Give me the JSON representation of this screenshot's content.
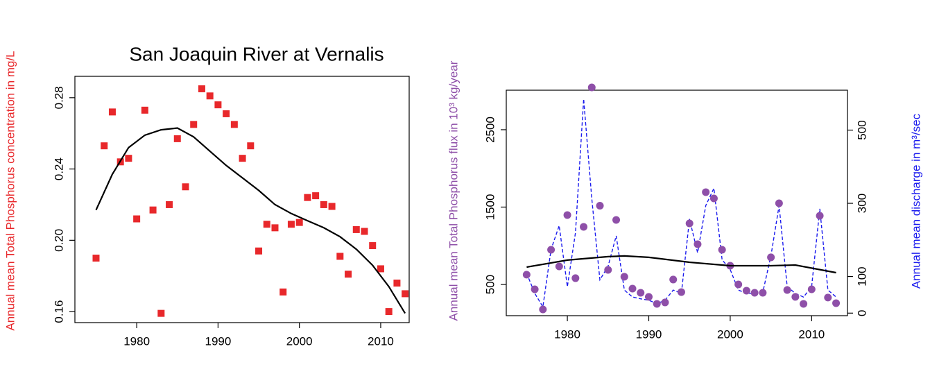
{
  "chart_data": [
    {
      "type": "scatter",
      "title": "San Joaquin River at Vernalis",
      "y_label": "Annual mean Total Phosphorus concentration in mg/L",
      "y_label_color": "#e8282b",
      "x": [
        1975,
        1976,
        1977,
        1978,
        1979,
        1980,
        1981,
        1982,
        1983,
        1984,
        1985,
        1986,
        1987,
        1988,
        1989,
        1990,
        1991,
        1992,
        1993,
        1994,
        1995,
        1996,
        1997,
        1998,
        1999,
        2000,
        2001,
        2002,
        2003,
        2004,
        2005,
        2006,
        2007,
        2008,
        2009,
        2010,
        2011,
        2012,
        2013
      ],
      "xlim": [
        1972.4,
        2013.5
      ],
      "xticks": [
        1980,
        1990,
        2000,
        2010
      ],
      "ylim": [
        0.1538,
        0.292
      ],
      "yticks": [
        0.16,
        {
          "value": 0.2,
          "label": "0.20"
        },
        0.24,
        0.28
      ],
      "series": [
        {
          "marker": "square",
          "color": "#e8282b",
          "values": [
            0.19,
            0.253,
            0.272,
            0.244,
            0.246,
            0.212,
            0.273,
            0.217,
            0.159,
            0.22,
            0.257,
            0.23,
            0.265,
            0.285,
            0.281,
            0.276,
            0.271,
            0.265,
            0.246,
            0.253,
            0.194,
            0.209,
            0.207,
            0.171,
            0.209,
            0.21,
            0.224,
            0.225,
            0.22,
            0.219,
            0.191,
            0.181,
            0.206,
            0.205,
            0.197,
            0.184,
            0.16,
            0.176,
            0.17
          ]
        },
        {
          "marker": "line",
          "color": "#000000",
          "x": [
            1975,
            1977,
            1979,
            1981,
            1983,
            1985,
            1987,
            1989,
            1991,
            1993,
            1995,
            1997,
            1999,
            2001,
            2003,
            2005,
            2007,
            2009,
            2011,
            2013
          ],
          "values": [
            0.217,
            0.237,
            0.252,
            0.259,
            0.262,
            0.263,
            0.258,
            0.25,
            0.242,
            0.235,
            0.228,
            0.22,
            0.215,
            0.211,
            0.207,
            0.202,
            0.195,
            0.186,
            0.174,
            0.159
          ]
        }
      ]
    },
    {
      "type": "scatter",
      "y_label": "Annual mean Total Phosphorus flux in 10³ kg/year",
      "y_label_color": "#8e4fa8",
      "y2_label": "Annual mean discharge in m³/sec",
      "y2_label_color": "#1a1aee",
      "x": [
        1975,
        1976,
        1977,
        1978,
        1979,
        1980,
        1981,
        1982,
        1983,
        1984,
        1985,
        1986,
        1987,
        1988,
        1989,
        1990,
        1991,
        1992,
        1993,
        1994,
        1995,
        1996,
        1997,
        1998,
        1999,
        2000,
        2001,
        2002,
        2003,
        2004,
        2005,
        2006,
        2007,
        2008,
        2009,
        2010,
        2011,
        2012,
        2013
      ],
      "xlim": [
        1972.5,
        2014.4
      ],
      "xticks": [
        1980,
        1990,
        2000,
        2010
      ],
      "ylim": [
        96,
        3011
      ],
      "yticks": [
        500,
        1500,
        2500
      ],
      "y2lim": [
        -7,
        609
      ],
      "y2ticks": [
        0,
        100,
        300,
        500
      ],
      "series": [
        {
          "marker": "dashed",
          "axis": "y2",
          "color": "#1a1aee",
          "values": [
            109,
            54,
            17,
            174,
            239,
            72,
            220,
            585,
            313,
            91,
            128,
            211,
            63,
            44,
            39,
            35,
            26,
            35,
            63,
            54,
            257,
            165,
            294,
            341,
            146,
            119,
            63,
            54,
            54,
            57,
            156,
            294,
            72,
            54,
            44,
            72,
            285,
            63,
            44
          ]
        },
        {
          "marker": "circle",
          "color": "#8e4fa8",
          "values": [
            626,
            437,
            177,
            948,
            733,
            1397,
            581,
            1244,
            3047,
            1518,
            688,
            1334,
            599,
            446,
            392,
            339,
            249,
            267,
            563,
            401,
            1289,
            1020,
            1693,
            1612,
            948,
            742,
            500,
            419,
            392,
            392,
            850,
            1549,
            428,
            339,
            249,
            437,
            1388,
            330,
            258
          ]
        },
        {
          "marker": "line",
          "color": "#000000",
          "x": [
            1975,
            1980,
            1985,
            1987,
            1990,
            1995,
            2000,
            2005,
            2008,
            2013
          ],
          "values": [
            724,
            814,
            859,
            868,
            850,
            787,
            742,
            742,
            751,
            652
          ]
        }
      ]
    }
  ]
}
